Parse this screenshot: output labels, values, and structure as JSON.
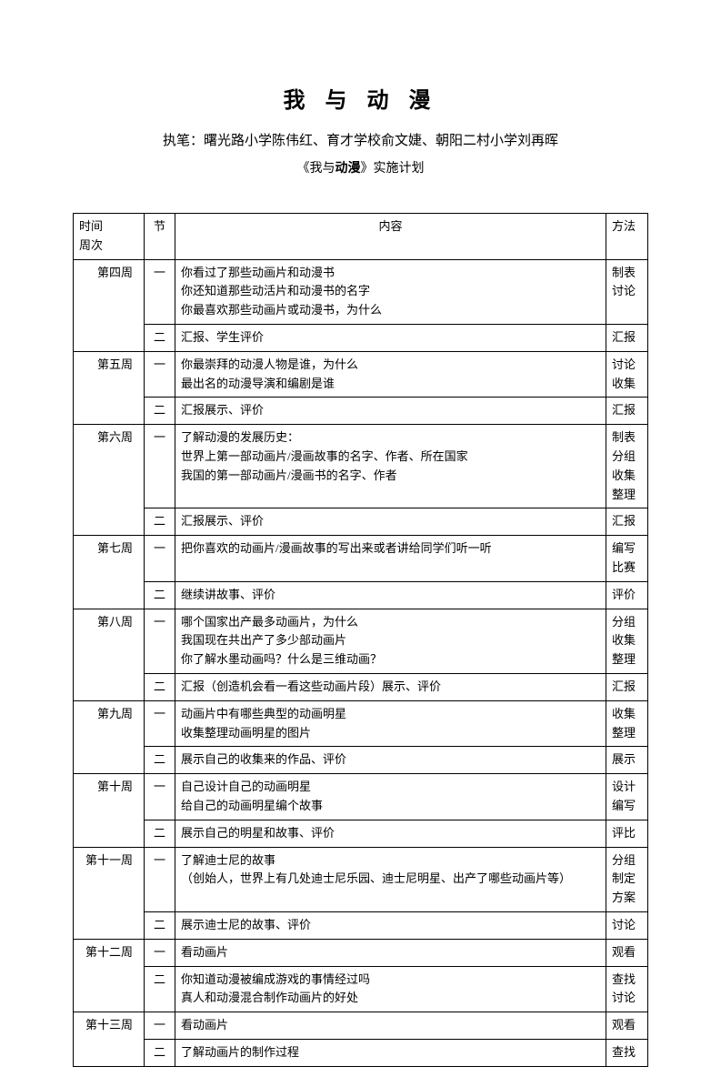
{
  "title": "我 与 动 漫",
  "subtitle": "执笔：曙光路小学陈伟红、育才学校俞文婕、朝阳二村小学刘再晖",
  "plan_title_pre": "《我与",
  "plan_title_bold": "动漫",
  "plan_title_post": "》实施计划",
  "headers": {
    "time_l1": "时间",
    "time_l2": "周次",
    "session": "节",
    "content": "内容",
    "method": "方法"
  },
  "rows": [
    {
      "week": "第四周",
      "session": "一",
      "content": "你看过了那些动画片和动漫书\n你还知道那些动活片和动漫书的名字\n你最喜欢那些动画片或动漫书，为什么",
      "method": "制表\n讨论"
    },
    {
      "week": "",
      "session": "二",
      "content": "汇报、学生评价",
      "method": "汇报"
    },
    {
      "week": "第五周",
      "session": "一",
      "content": "你最崇拜的动漫人物是谁，为什么\n最出名的动漫导演和编剧是谁",
      "method": "讨论\n收集"
    },
    {
      "week": "",
      "session": "二",
      "content": "汇报展示、评价",
      "method": "汇报"
    },
    {
      "week": "第六周",
      "session": "一",
      "content": "了解动漫的发展历史：\n世界上第一部动画片/漫画故事的名字、作者、所在国家\n我国的第一部动画片/漫画书的名字、作者",
      "method": "制表\n分组\n收集\n整理"
    },
    {
      "week": "",
      "session": "二",
      "content": "汇报展示、评价",
      "method": "汇报"
    },
    {
      "week": "第七周",
      "session": "一",
      "content": "把你喜欢的动画片/漫画故事的写出来或者讲给同学们听一听",
      "method": "编写\n比赛"
    },
    {
      "week": "",
      "session": "二",
      "content": "继续讲故事、评价",
      "method": "评价"
    },
    {
      "week": "第八周",
      "session": "一",
      "content": "哪个国家出产最多动画片，为什么\n我国现在共出产了多少部动画片\n你了解水墨动画吗？什么是三维动画？",
      "method": "分组\n收集\n整理"
    },
    {
      "week": "",
      "session": "二",
      "content": "汇报（创造机会看一看这些动画片段）展示、评价",
      "method": "汇报"
    },
    {
      "week": "第九周",
      "session": "一",
      "content": "动画片中有哪些典型的动画明星\n收集整理动画明星的图片",
      "method": "收集\n整理"
    },
    {
      "week": "",
      "session": "二",
      "content": "展示自己的收集来的作品、评价",
      "method": "展示"
    },
    {
      "week": "第十周",
      "session": "一",
      "content": "自己设计自己的动画明星\n给自己的动画明星编个故事",
      "method": "设计\n编写"
    },
    {
      "week": "",
      "session": "二",
      "content": "展示自己的明星和故事、评价",
      "method": "评比"
    },
    {
      "week": "第十一周",
      "session": "一",
      "content": "了解迪士尼的故事\n（创始人，世界上有几处迪士尼乐园、迪士尼明星、出产了哪些动画片等）",
      "method": "分组\n制定\n方案"
    },
    {
      "week": "",
      "session": "二",
      "content": "展示迪士尼的故事、评价",
      "method": "讨论"
    },
    {
      "week": "第十二周",
      "session": "一",
      "content": "看动画片",
      "method": "观看"
    },
    {
      "week": "",
      "session": "二",
      "content": "你知道动漫被编成游戏的事情经过吗\n真人和动漫混合制作动画片的好处",
      "method": "查找\n讨论"
    },
    {
      "week": "第十三周",
      "session": "一",
      "content": "看动画片",
      "method": "观看"
    },
    {
      "week": "",
      "session": "二",
      "content": "了解动画片的制作过程",
      "method": "查找"
    }
  ]
}
